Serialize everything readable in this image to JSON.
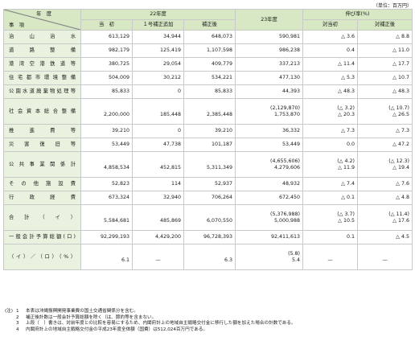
{
  "unit_label": "（単位：百万円）",
  "header": {
    "year_label": "年　度",
    "item_label": "事　項",
    "fy22": "22年度",
    "fy23": "23年度",
    "growth": "伸び率(%)",
    "initial": "当　初",
    "supp1": "１号補正追加",
    "after_supp": "補正後",
    "vs_initial": "対当初",
    "vs_supp": "対補正後"
  },
  "rows": [
    {
      "label": "治山治水",
      "c1": [
        "613,129"
      ],
      "c2": [
        "34,944"
      ],
      "c3": [
        "648,073"
      ],
      "c4": [
        "590,981"
      ],
      "c5": [
        "△ 3.6"
      ],
      "c6": [
        "△ 8.8"
      ]
    },
    {
      "label": "道路整備",
      "c1": [
        "982,179"
      ],
      "c2": [
        "125,419"
      ],
      "c3": [
        "1,107,598"
      ],
      "c4": [
        "986,238"
      ],
      "c5": [
        "0.4"
      ],
      "c6": [
        "△ 11.0"
      ]
    },
    {
      "label": "港湾空港鉄道等",
      "c1": [
        "380,725"
      ],
      "c2": [
        "29,054"
      ],
      "c3": [
        "409,779"
      ],
      "c4": [
        "337,213"
      ],
      "c5": [
        "△ 11.4"
      ],
      "c6": [
        "△ 17.7"
      ]
    },
    {
      "label": "住宅都市環境整備",
      "c1": [
        "504,009"
      ],
      "c2": [
        "30,212"
      ],
      "c3": [
        "534,221"
      ],
      "c4": [
        "477,130"
      ],
      "c5": [
        "△ 5.3"
      ],
      "c6": [
        "△ 10.7"
      ]
    },
    {
      "label": "公園水道廃棄物処理等",
      "c1": [
        "85,833"
      ],
      "c2": [
        "0"
      ],
      "c3": [
        "85,833"
      ],
      "c4": [
        "44,393"
      ],
      "c5": [
        "△ 48.3"
      ],
      "c6": [
        "△ 48.3"
      ]
    },
    {
      "label": "社会資本総合整備",
      "c1": [
        "",
        "2,200,000"
      ],
      "c2": [
        "",
        "185,448"
      ],
      "c3": [
        "",
        "2,385,448"
      ],
      "c4": [
        "(2,129,870)",
        "1,753,870"
      ],
      "c5": [
        "(△ 3.2)",
        "△ 20.3"
      ],
      "c6": [
        "(△ 10.7)",
        "△ 26.5"
      ]
    },
    {
      "label": "推進費等",
      "c1": [
        "39,210"
      ],
      "c2": [
        "0"
      ],
      "c3": [
        "39,210"
      ],
      "c4": [
        "36,332"
      ],
      "c5": [
        "△ 7.3"
      ],
      "c6": [
        "△ 7.3"
      ]
    },
    {
      "label": "災害復旧等",
      "c1": [
        "53,449"
      ],
      "c2": [
        "47,738"
      ],
      "c3": [
        "101,187"
      ],
      "c4": [
        "53,449"
      ],
      "c5": [
        "0.0"
      ],
      "c6": [
        "△ 47.2"
      ]
    },
    {
      "label": "公共事業関係計",
      "c1": [
        "",
        "4,858,534"
      ],
      "c2": [
        "",
        "452,815"
      ],
      "c3": [
        "",
        "5,311,349"
      ],
      "c4": [
        "(4,655,606)",
        "4,279,606"
      ],
      "c5": [
        "(△ 4.2)",
        "△ 11.9"
      ],
      "c6": [
        "(△ 12.3)",
        "△ 19.4"
      ]
    },
    {
      "label": "その他施設費",
      "c1": [
        "52,823"
      ],
      "c2": [
        "114"
      ],
      "c3": [
        "52,937"
      ],
      "c4": [
        "48,932"
      ],
      "c5": [
        "△ 7.4"
      ],
      "c6": [
        "△ 7.6"
      ]
    },
    {
      "label": "行政経費",
      "c1": [
        "673,324"
      ],
      "c2": [
        "32,940"
      ],
      "c3": [
        "706,264"
      ],
      "c4": [
        "672,450"
      ],
      "c5": [
        "△ 0.1"
      ],
      "c6": [
        "△ 4.8"
      ]
    },
    {
      "label": "合計（イ）",
      "c1": [
        "",
        "5,584,681"
      ],
      "c2": [
        "",
        "485,869"
      ],
      "c3": [
        "",
        "6,070,550"
      ],
      "c4": [
        "(5,376,988)",
        "5,000,988"
      ],
      "c5": [
        "(△ 3.7)",
        "△ 10.5"
      ],
      "c6": [
        "(△ 11.4)",
        "△ 17.6"
      ]
    },
    {
      "label": "一般会計予算総額(ロ)",
      "c1": [
        "92,299,193"
      ],
      "c2": [
        "4,429,200"
      ],
      "c3": [
        "96,728,393"
      ],
      "c4": [
        "92,411,613"
      ],
      "c5": [
        "0.1"
      ],
      "c6": [
        "△ 4.5"
      ]
    },
    {
      "label": "（イ）／（ロ）（%）",
      "c1": [
        "",
        "6.1"
      ],
      "c2": [
        "",
        "—"
      ],
      "c3": [
        "",
        "6.3"
      ],
      "c4": [
        "(5.8)",
        "5.4"
      ],
      "c5": [
        "",
        "—"
      ],
      "c6": [
        "",
        "—"
      ]
    }
  ],
  "notes": {
    "mark": "(注)",
    "items": [
      {
        "num": "1",
        "text": "本表は沖縄振興開発事業費の国土交通省関係分を含む。"
      },
      {
        "num": "2",
        "text": "補正後計数は一般会計予算総額を除く（は、節約等を含まない。"
      },
      {
        "num": "3",
        "text": "上段（　）書きは、対前年度との比較を容易にするため、内閣府計上の地域自主戦略交付金に移行した額を加えた場合の計数である。"
      },
      {
        "num": "4",
        "text": "内閣府計上の地域自主戦略交付金の平成23年度全体額（国費）は512,024百万円である。"
      }
    ]
  }
}
